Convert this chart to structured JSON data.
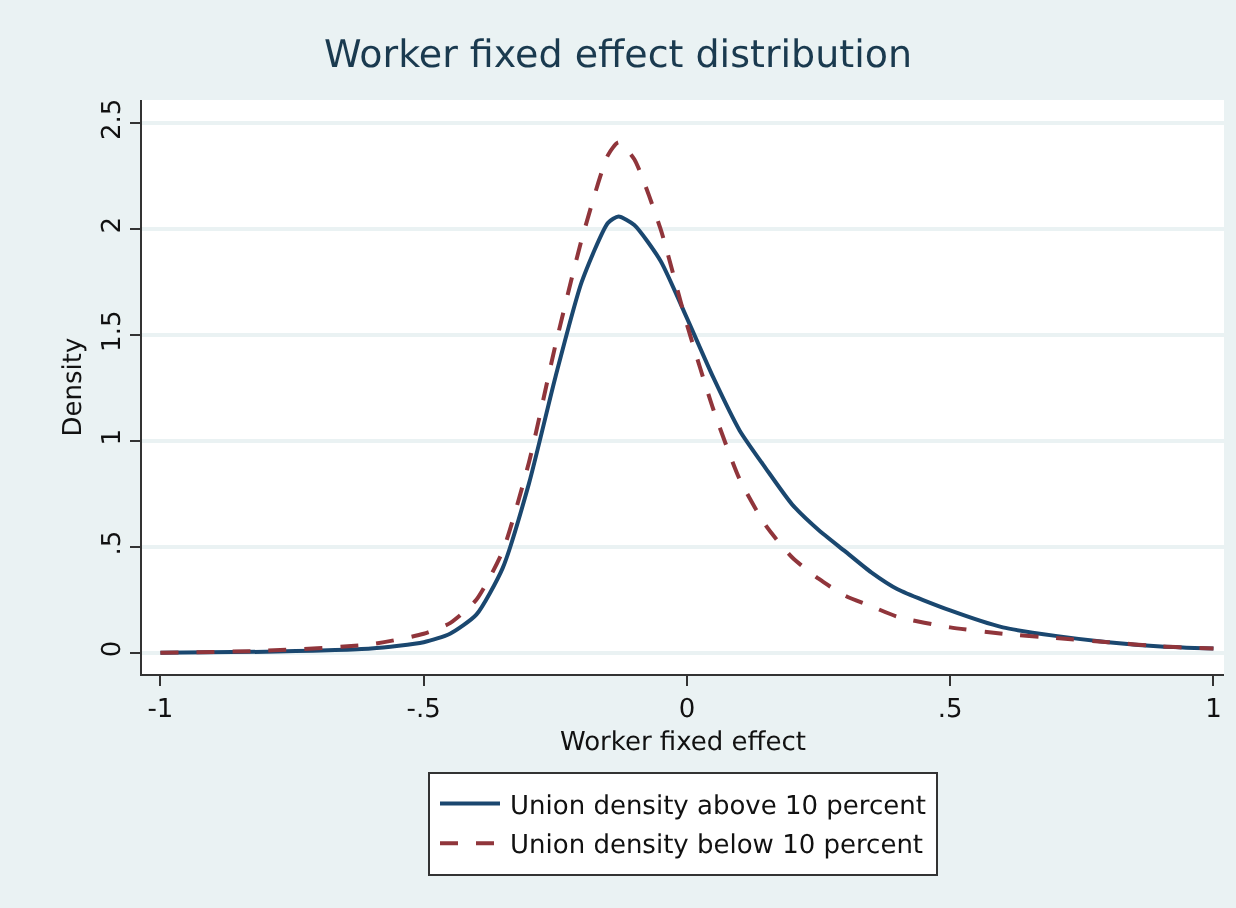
{
  "chart_data": {
    "type": "line",
    "title": "Worker fixed effect distribution",
    "xlabel": "Worker fixed effect",
    "ylabel": "Density",
    "x": [
      -1,
      -0.8,
      -0.6,
      -0.5,
      -0.45,
      -0.4,
      -0.35,
      -0.3,
      -0.25,
      -0.2,
      -0.15,
      -0.13,
      -0.1,
      -0.05,
      0,
      0.05,
      0.1,
      0.15,
      0.2,
      0.25,
      0.3,
      0.35,
      0.4,
      0.5,
      0.6,
      0.7,
      0.8,
      0.9,
      1
    ],
    "series": [
      {
        "name": "Union density above 10 percent",
        "color": "#1a476f",
        "line_style": "solid",
        "values": [
          0,
          0.005,
          0.02,
          0.05,
          0.09,
          0.18,
          0.4,
          0.8,
          1.3,
          1.75,
          2.03,
          2.06,
          2.02,
          1.85,
          1.58,
          1.3,
          1.05,
          0.87,
          0.7,
          0.58,
          0.48,
          0.38,
          0.3,
          0.2,
          0.12,
          0.08,
          0.05,
          0.03,
          0.02
        ]
      },
      {
        "name": "Union density below 10 percent",
        "color": "#90353b",
        "line_style": "dashed",
        "values": [
          0,
          0.01,
          0.04,
          0.09,
          0.14,
          0.25,
          0.48,
          0.9,
          1.45,
          1.95,
          2.35,
          2.41,
          2.33,
          2.0,
          1.55,
          1.15,
          0.82,
          0.6,
          0.45,
          0.35,
          0.27,
          0.22,
          0.17,
          0.12,
          0.09,
          0.07,
          0.05,
          0.03,
          0.02
        ]
      }
    ],
    "xlim": [
      -1.035,
      1.02
    ],
    "ylim": [
      -0.1,
      2.61
    ],
    "xticks": [
      {
        "value": -1,
        "label": "-1"
      },
      {
        "value": -0.5,
        "label": "-.5"
      },
      {
        "value": 0,
        "label": "0"
      },
      {
        "value": 0.5,
        "label": ".5"
      },
      {
        "value": 1,
        "label": "1"
      }
    ],
    "yticks": [
      {
        "value": 0,
        "label": "0"
      },
      {
        "value": 0.5,
        "label": ".5"
      },
      {
        "value": 1,
        "label": "1"
      },
      {
        "value": 1.5,
        "label": "1.5"
      },
      {
        "value": 2,
        "label": "2"
      },
      {
        "value": 2.5,
        "label": "2.5"
      }
    ],
    "grid": "y",
    "legend": "bottom",
    "marker": "none"
  }
}
